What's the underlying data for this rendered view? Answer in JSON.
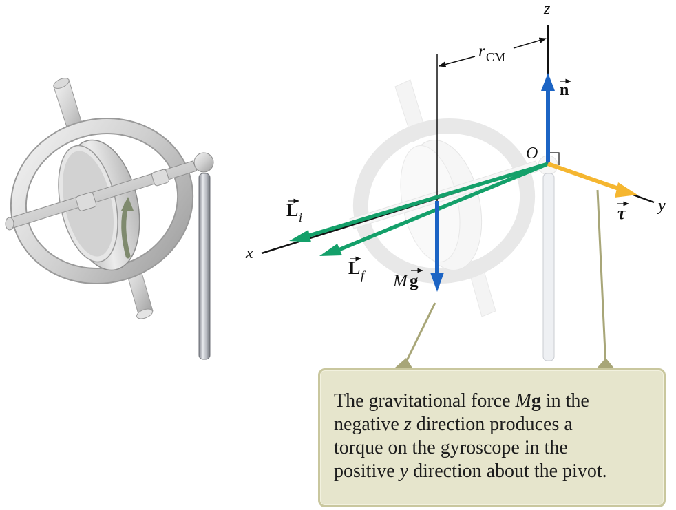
{
  "axes": {
    "x": "x",
    "y": "y",
    "z": "z"
  },
  "origin_label": "O",
  "vectors": {
    "n": "n",
    "L_i": {
      "base": "L",
      "sub": "i"
    },
    "L_f": {
      "base": "L",
      "sub": "f"
    },
    "tau": "τ",
    "Mg": {
      "M": "M",
      "g": "g"
    }
  },
  "r_cm": {
    "base": "r",
    "sub": "CM"
  },
  "caption": {
    "line1_pre": "The gravitational force ",
    "line1_M": "M",
    "line1_g": "g",
    "line1_post": " in the",
    "line2_pre": "negative ",
    "line2_var": "z",
    "line2_post": " direction produces a",
    "line3": "torque on the gyroscope in the",
    "line4_pre": "positive ",
    "line4_var": "y",
    "line4_post": " direction about the pivot."
  },
  "colors": {
    "angular_momentum": "#14a06a",
    "force": "#1c64c4",
    "torque": "#f5b630",
    "callout": "#e6e5cc",
    "leader": "#a8a678"
  }
}
